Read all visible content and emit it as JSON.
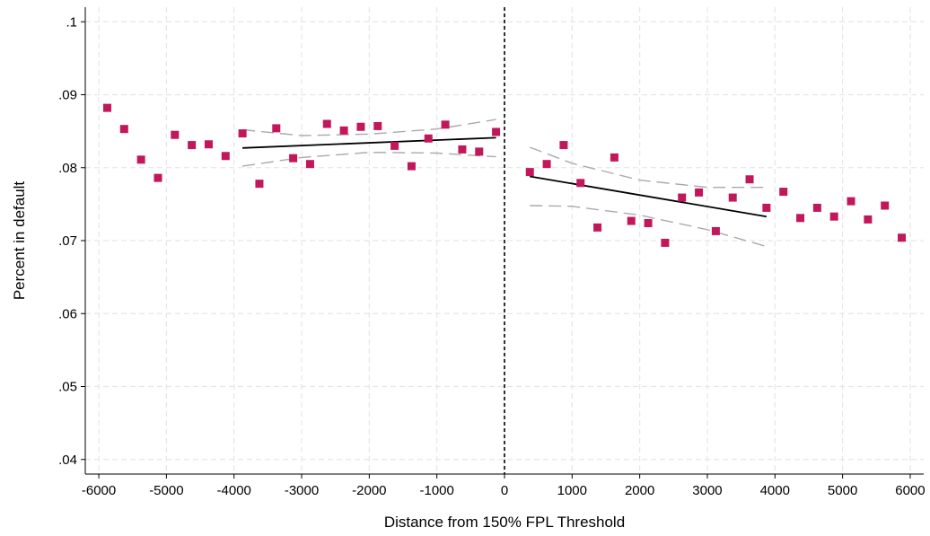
{
  "chart_data": {
    "type": "scatter",
    "title": "",
    "xlabel": "Distance from 150% FPL Threshold",
    "ylabel": "Percent in default",
    "xlim": [
      -6200,
      6200
    ],
    "ylim": [
      0.038,
      0.102
    ],
    "x_ticks": [
      -6000,
      -5000,
      -4000,
      -3000,
      -2000,
      -1000,
      0,
      1000,
      2000,
      3000,
      4000,
      5000,
      6000
    ],
    "x_tick_labels": [
      "-6000",
      "-5000",
      "-4000",
      "-3000",
      "-2000",
      "-1000",
      "0",
      "1000",
      "2000",
      "3000",
      "4000",
      "5000",
      "6000"
    ],
    "y_ticks": [
      0.04,
      0.05,
      0.06,
      0.07,
      0.08,
      0.09,
      0.1
    ],
    "y_tick_labels": [
      ".04",
      ".05",
      ".06",
      ".07",
      ".08",
      ".09",
      ".1"
    ],
    "grid": true,
    "threshold_x": 0,
    "colors": {
      "points": "#c2185b",
      "fit": "#000000",
      "ci": "#aaaaaa",
      "grid": "#e6e6e6",
      "threshold": "#000000"
    },
    "series": [
      {
        "marker": "square",
        "points": [
          [
            -5875,
            0.0882
          ],
          [
            -5625,
            0.0853
          ],
          [
            -5375,
            0.0811
          ],
          [
            -5125,
            0.0786
          ],
          [
            -4875,
            0.0845
          ],
          [
            -4625,
            0.0831
          ],
          [
            -4375,
            0.0832
          ],
          [
            -4125,
            0.0816
          ],
          [
            -3875,
            0.0847
          ],
          [
            -3625,
            0.0778
          ],
          [
            -3375,
            0.0854
          ],
          [
            -3125,
            0.0813
          ],
          [
            -2875,
            0.0805
          ],
          [
            -2625,
            0.086
          ],
          [
            -2375,
            0.0851
          ],
          [
            -2125,
            0.0856
          ],
          [
            -1875,
            0.0857
          ],
          [
            -1625,
            0.083
          ],
          [
            -1375,
            0.0802
          ],
          [
            -1125,
            0.084
          ],
          [
            -875,
            0.0859
          ],
          [
            -625,
            0.0825
          ],
          [
            -375,
            0.0822
          ],
          [
            -125,
            0.0849
          ],
          [
            375,
            0.0794
          ],
          [
            625,
            0.0805
          ],
          [
            875,
            0.0831
          ],
          [
            1125,
            0.0779
          ],
          [
            1375,
            0.0718
          ],
          [
            1625,
            0.0814
          ],
          [
            1875,
            0.0727
          ],
          [
            2125,
            0.0724
          ],
          [
            2375,
            0.0697
          ],
          [
            2625,
            0.0759
          ],
          [
            2875,
            0.0766
          ],
          [
            3125,
            0.0713
          ],
          [
            3375,
            0.0759
          ],
          [
            3625,
            0.0784
          ],
          [
            3875,
            0.0745
          ],
          [
            4125,
            0.0767
          ],
          [
            4375,
            0.0731
          ],
          [
            4625,
            0.0745
          ],
          [
            4875,
            0.0733
          ],
          [
            5125,
            0.0754
          ],
          [
            5375,
            0.0729
          ],
          [
            5625,
            0.0748
          ],
          [
            5875,
            0.0704
          ]
        ]
      },
      {
        "style": "line",
        "points": [
          [
            -3875,
            0.0827
          ],
          [
            -125,
            0.0841
          ]
        ]
      },
      {
        "style": "dashed",
        "points": [
          [
            -3875,
            0.0852
          ],
          [
            -3000,
            0.0844
          ],
          [
            -2000,
            0.0846
          ],
          [
            -1000,
            0.0853
          ],
          [
            -125,
            0.0866
          ]
        ]
      },
      {
        "style": "dashed",
        "points": [
          [
            -3875,
            0.0802
          ],
          [
            -3000,
            0.0814
          ],
          [
            -2000,
            0.0821
          ],
          [
            -1000,
            0.082
          ],
          [
            -125,
            0.0815
          ]
        ]
      },
      {
        "style": "line",
        "points": [
          [
            375,
            0.0788
          ],
          [
            3875,
            0.0733
          ]
        ]
      },
      {
        "style": "dashed",
        "points": [
          [
            375,
            0.0828
          ],
          [
            1000,
            0.0806
          ],
          [
            2000,
            0.0783
          ],
          [
            3000,
            0.0773
          ],
          [
            3875,
            0.0773
          ]
        ]
      },
      {
        "style": "dashed",
        "points": [
          [
            375,
            0.0748
          ],
          [
            1000,
            0.0747
          ],
          [
            2000,
            0.0735
          ],
          [
            3000,
            0.0715
          ],
          [
            3875,
            0.0692
          ]
        ]
      }
    ]
  }
}
